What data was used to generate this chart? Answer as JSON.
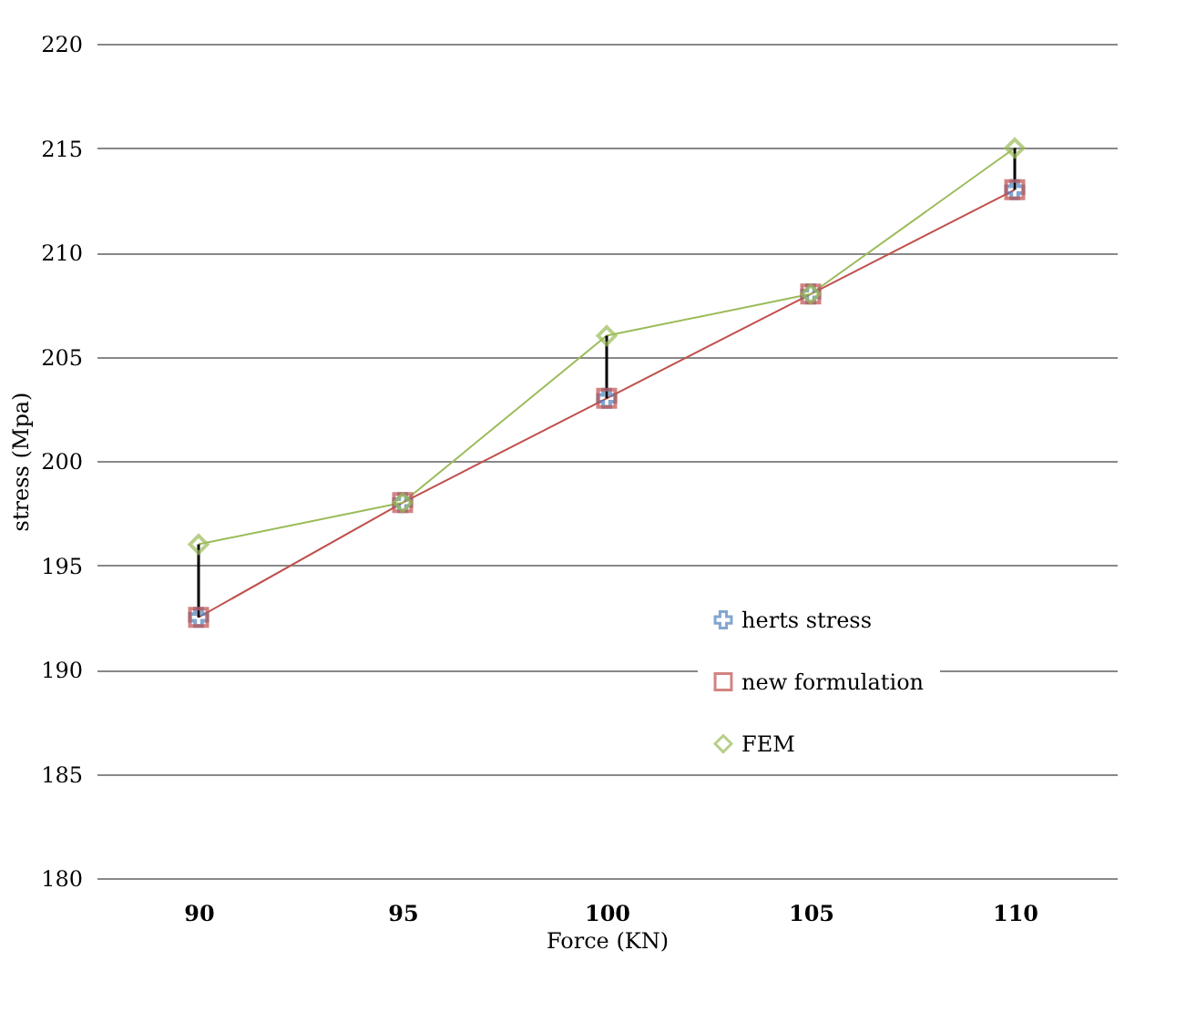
{
  "chart_data": {
    "type": "line",
    "xlabel": "Force (KN)",
    "ylabel": "stress (Mpa)",
    "categories": [
      "90",
      "95",
      "100",
      "105",
      "110"
    ],
    "series": [
      {
        "name": "herts stress",
        "type": "scatter",
        "marker": "cross",
        "color": "#4f81bd",
        "values": [
          192.5,
          198,
          203,
          208,
          213
        ]
      },
      {
        "name": "new formulation",
        "marker": "square",
        "color": "#c0504d",
        "values": [
          192.5,
          198,
          203,
          208,
          213
        ]
      },
      {
        "name": "FEM",
        "marker": "diamond",
        "color": "#9bbb59",
        "values": [
          196,
          198,
          206,
          208,
          215
        ],
        "errors": [
          [
            192.5,
            196
          ],
          null,
          [
            203,
            206
          ],
          null,
          [
            213,
            215
          ]
        ]
      }
    ],
    "ylim": [
      180,
      220
    ],
    "yticks": [
      180,
      185,
      190,
      195,
      200,
      205,
      210,
      215,
      220
    ],
    "grid": "y",
    "legend": "right"
  }
}
